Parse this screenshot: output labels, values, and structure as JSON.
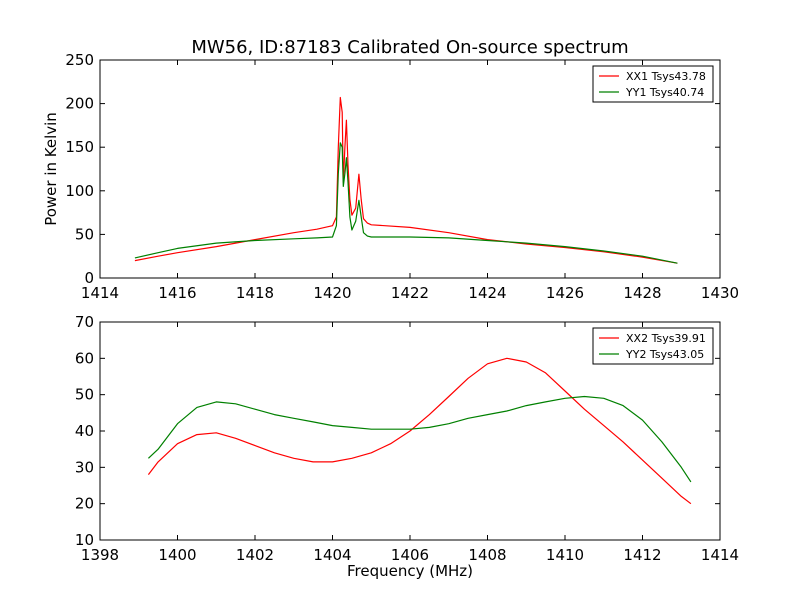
{
  "chart_data": [
    {
      "type": "line",
      "title": "MW56, ID:87183 Calibrated On-source spectrum",
      "xlabel": "",
      "ylabel": "Power in Kelvin",
      "xlim": [
        1414,
        1430
      ],
      "ylim": [
        0,
        250
      ],
      "xticks": [
        1414,
        1416,
        1418,
        1420,
        1422,
        1424,
        1426,
        1428,
        1430
      ],
      "yticks": [
        0,
        50,
        100,
        150,
        200,
        250
      ],
      "legend_position": "top-right",
      "series": [
        {
          "name": "XX1 Tsys43.78",
          "color": "#ff0000",
          "points": [
            [
              1414.9,
              20
            ],
            [
              1415.5,
              25
            ],
            [
              1416,
              29
            ],
            [
              1417,
              36
            ],
            [
              1418,
              44
            ],
            [
              1419,
              52
            ],
            [
              1419.6,
              56
            ],
            [
              1420.0,
              60
            ],
            [
              1420.1,
              70
            ],
            [
              1420.15,
              150
            ],
            [
              1420.2,
              207
            ],
            [
              1420.25,
              190
            ],
            [
              1420.28,
              110
            ],
            [
              1420.32,
              150
            ],
            [
              1420.36,
              181
            ],
            [
              1420.4,
              130
            ],
            [
              1420.45,
              90
            ],
            [
              1420.5,
              72
            ],
            [
              1420.6,
              80
            ],
            [
              1420.68,
              119
            ],
            [
              1420.74,
              90
            ],
            [
              1420.8,
              68
            ],
            [
              1420.9,
              63
            ],
            [
              1421,
              61
            ],
            [
              1422,
              58
            ],
            [
              1423,
              52
            ],
            [
              1424,
              44
            ],
            [
              1425,
              39
            ],
            [
              1426,
              35
            ],
            [
              1427,
              30
            ],
            [
              1428,
              24
            ],
            [
              1428.9,
              17
            ]
          ]
        },
        {
          "name": "YY1 Tsys40.74",
          "color": "#008000",
          "points": [
            [
              1414.9,
              23
            ],
            [
              1415.5,
              29
            ],
            [
              1416,
              34
            ],
            [
              1417,
              40
            ],
            [
              1418,
              43
            ],
            [
              1419,
              45
            ],
            [
              1419.6,
              46
            ],
            [
              1420.0,
              47
            ],
            [
              1420.1,
              60
            ],
            [
              1420.15,
              120
            ],
            [
              1420.2,
              155
            ],
            [
              1420.25,
              150
            ],
            [
              1420.28,
              105
            ],
            [
              1420.32,
              120
            ],
            [
              1420.36,
              138
            ],
            [
              1420.4,
              110
            ],
            [
              1420.45,
              70
            ],
            [
              1420.5,
              55
            ],
            [
              1420.6,
              65
            ],
            [
              1420.68,
              89
            ],
            [
              1420.74,
              70
            ],
            [
              1420.8,
              52
            ],
            [
              1420.9,
              48
            ],
            [
              1421,
              47
            ],
            [
              1422,
              47
            ],
            [
              1423,
              46
            ],
            [
              1424,
              43
            ],
            [
              1425,
              40
            ],
            [
              1426,
              36
            ],
            [
              1427,
              31
            ],
            [
              1428,
              25
            ],
            [
              1428.9,
              17
            ]
          ]
        }
      ]
    },
    {
      "type": "line",
      "title": "",
      "xlabel": "Frequency (MHz)",
      "ylabel": "",
      "xlim": [
        1398,
        1414
      ],
      "ylim": [
        10,
        70
      ],
      "xticks": [
        1398,
        1400,
        1402,
        1404,
        1406,
        1408,
        1410,
        1412,
        1414
      ],
      "yticks": [
        10,
        20,
        30,
        40,
        50,
        60,
        70
      ],
      "legend_position": "top-right",
      "series": [
        {
          "name": "XX2 Tsys39.91",
          "color": "#ff0000",
          "points": [
            [
              1399.25,
              28
            ],
            [
              1399.5,
              31.5
            ],
            [
              1400,
              36.5
            ],
            [
              1400.5,
              39
            ],
            [
              1401,
              39.5
            ],
            [
              1401.5,
              38
            ],
            [
              1402,
              36
            ],
            [
              1402.5,
              34
            ],
            [
              1403,
              32.5
            ],
            [
              1403.5,
              31.5
            ],
            [
              1404,
              31.5
            ],
            [
              1404.5,
              32.5
            ],
            [
              1405,
              34
            ],
            [
              1405.5,
              36.5
            ],
            [
              1406,
              40
            ],
            [
              1406.5,
              44.5
            ],
            [
              1407,
              49.5
            ],
            [
              1407.5,
              54.5
            ],
            [
              1408,
              58.5
            ],
            [
              1408.5,
              60
            ],
            [
              1409,
              59
            ],
            [
              1409.5,
              56
            ],
            [
              1410,
              51
            ],
            [
              1410.5,
              46
            ],
            [
              1411,
              41.5
            ],
            [
              1411.5,
              37
            ],
            [
              1412,
              32
            ],
            [
              1412.5,
              27
            ],
            [
              1413,
              22
            ],
            [
              1413.25,
              20
            ]
          ]
        },
        {
          "name": "YY2 Tsys43.05",
          "color": "#008000",
          "points": [
            [
              1399.25,
              32.5
            ],
            [
              1399.5,
              35
            ],
            [
              1400,
              42
            ],
            [
              1400.5,
              46.5
            ],
            [
              1401,
              48
            ],
            [
              1401.5,
              47.5
            ],
            [
              1402,
              46
            ],
            [
              1402.5,
              44.5
            ],
            [
              1403,
              43.5
            ],
            [
              1403.5,
              42.5
            ],
            [
              1404,
              41.5
            ],
            [
              1404.5,
              41
            ],
            [
              1405,
              40.5
            ],
            [
              1405.5,
              40.5
            ],
            [
              1406,
              40.5
            ],
            [
              1406.5,
              41
            ],
            [
              1407,
              42
            ],
            [
              1407.5,
              43.5
            ],
            [
              1408,
              44.5
            ],
            [
              1408.5,
              45.5
            ],
            [
              1409,
              47
            ],
            [
              1409.5,
              48
            ],
            [
              1410,
              49
            ],
            [
              1410.5,
              49.5
            ],
            [
              1411,
              49
            ],
            [
              1411.5,
              47
            ],
            [
              1412,
              43
            ],
            [
              1412.5,
              37
            ],
            [
              1413,
              30
            ],
            [
              1413.25,
              26
            ]
          ]
        }
      ]
    }
  ]
}
